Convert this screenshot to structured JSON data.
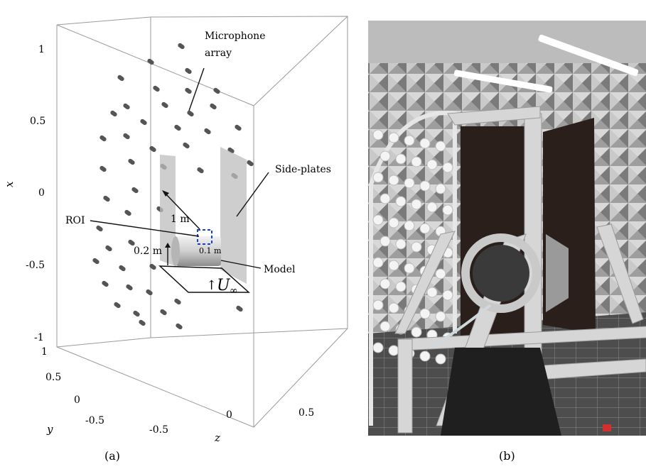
{
  "panel_a": {
    "caption": "(a)",
    "x_axis": {
      "title": "x",
      "ticks": [
        "1",
        "0.5",
        "0",
        "-0.5",
        "-1"
      ]
    },
    "y_axis": {
      "title": "y",
      "ticks": [
        "1",
        "0.5",
        "0",
        "-0.5"
      ]
    },
    "z_axis": {
      "title": "z",
      "ticks": [
        "-0.5",
        "0",
        "0.5"
      ]
    },
    "annotations": {
      "microphone_line1": "Microphone",
      "microphone_line2": "array",
      "side_plates": "Side-plates",
      "roi": "ROI",
      "model": "Model",
      "dist_1m": "1 m",
      "dist_02m": "0.2 m",
      "dist_01m": "0.1 m",
      "flow_arrow": "↑",
      "flow_symbol": "U",
      "flow_subscript": "∞"
    },
    "colors": {
      "microphone": "#555555",
      "side_plate": "#bdbdbd",
      "roi_box": "#1a3fd6",
      "box_edges": "#9a9a9a"
    }
  },
  "panel_b": {
    "caption": "(b)",
    "description_icon": "photo-of-anechoic-chamber-setup"
  }
}
